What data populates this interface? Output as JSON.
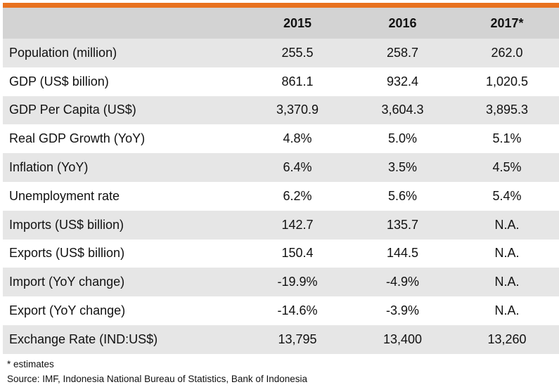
{
  "table": {
    "headers": [
      "",
      "2015",
      "2016",
      "2017*"
    ],
    "rows": [
      {
        "label": "Population (million)",
        "values": [
          "255.5",
          "258.7",
          "262.0"
        ]
      },
      {
        "label": "GDP (US$ billion)",
        "values": [
          "861.1",
          "932.4",
          "1,020.5"
        ]
      },
      {
        "label": "GDP Per Capita (US$)",
        "values": [
          "3,370.9",
          "3,604.3",
          "3,895.3"
        ]
      },
      {
        "label": "Real GDP Growth (YoY)",
        "values": [
          "4.8%",
          "5.0%",
          "5.1%"
        ]
      },
      {
        "label": "Inflation (YoY)",
        "values": [
          "6.4%",
          "3.5%",
          "4.5%"
        ]
      },
      {
        "label": "Unemployment rate",
        "values": [
          "6.2%",
          "5.6%",
          "5.4%"
        ]
      },
      {
        "label": "Imports (US$ billion)",
        "values": [
          "142.7",
          "135.7",
          "N.A."
        ]
      },
      {
        "label": "Exports (US$ billion)",
        "values": [
          "150.4",
          "144.5",
          "N.A."
        ]
      },
      {
        "label": "Import (YoY change)",
        "values": [
          "-19.9%",
          "-4.9%",
          "N.A."
        ]
      },
      {
        "label": "Export (YoY change)",
        "values": [
          "-14.6%",
          "-3.9%",
          "N.A."
        ]
      },
      {
        "label": "Exchange Rate (IND:US$)",
        "values": [
          "13,795",
          "13,400",
          "13,260"
        ]
      }
    ]
  },
  "notes": {
    "footnote": "* estimates",
    "source": "Source: IMF, Indonesia National Bureau of Statistics, Bank of Indonesia"
  },
  "colors": {
    "accent_bar": "#e8711f",
    "header_bg": "#d3d3d3",
    "shaded_row_bg": "#e6e6e6"
  }
}
